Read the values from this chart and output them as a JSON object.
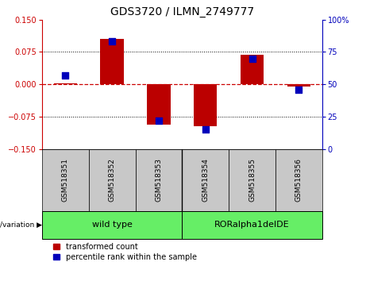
{
  "title": "GDS3720 / ILMN_2749777",
  "samples": [
    "GSM518351",
    "GSM518352",
    "GSM518353",
    "GSM518354",
    "GSM518355",
    "GSM518356"
  ],
  "transformed_counts": [
    0.003,
    0.105,
    -0.093,
    -0.098,
    0.068,
    -0.005
  ],
  "percentile_ranks": [
    57,
    83,
    22,
    15,
    70,
    46
  ],
  "ylim_left": [
    -0.15,
    0.15
  ],
  "ylim_right": [
    0,
    100
  ],
  "yticks_left": [
    -0.15,
    -0.075,
    0,
    0.075,
    0.15
  ],
  "yticks_right": [
    0,
    25,
    50,
    75,
    100
  ],
  "bar_color": "#BB0000",
  "dot_color": "#0000BB",
  "hline_color": "#CC0000",
  "legend_labels": [
    "transformed count",
    "percentile rank within the sample"
  ],
  "bar_width": 0.5,
  "dot_size": 30,
  "group1_label": "wild type",
  "group2_label": "RORalpha1delDE",
  "group_color": "#66EE66",
  "sample_box_color": "#C8C8C8",
  "genotype_label": "genotype/variation"
}
